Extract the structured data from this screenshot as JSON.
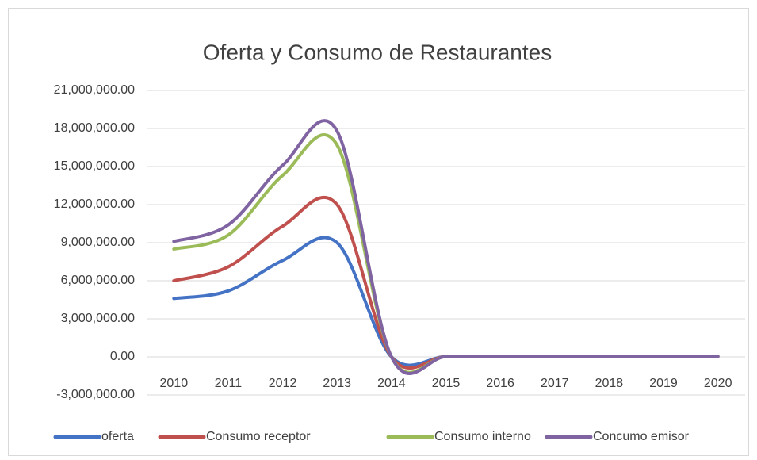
{
  "chart_data": {
    "type": "line",
    "title": "Oferta y Consumo de Restaurantes",
    "categories": [
      "2010",
      "2011",
      "2012",
      "2013",
      "2014",
      "2015",
      "2016",
      "2017",
      "2018",
      "2019",
      "2020"
    ],
    "series": [
      {
        "name": "oferta",
        "color": "#4472c4",
        "values": [
          4600000,
          5200000,
          7600000,
          9000000,
          0,
          20000,
          40000,
          60000,
          60000,
          60000,
          40000
        ]
      },
      {
        "name": "Consumo receptor",
        "color": "#c0504d",
        "values": [
          6000000,
          7100000,
          10300000,
          12000000,
          0,
          20000,
          40000,
          60000,
          60000,
          60000,
          40000
        ]
      },
      {
        "name": "Consumo interno",
        "color": "#9bbb59",
        "values": [
          8500000,
          9600000,
          14300000,
          16700000,
          0,
          20000,
          40000,
          60000,
          60000,
          60000,
          40000
        ]
      },
      {
        "name": "Concumo emisor",
        "color": "#8064a2",
        "values": [
          9100000,
          10400000,
          15100000,
          17800000,
          0,
          20000,
          40000,
          60000,
          60000,
          60000,
          40000
        ]
      }
    ],
    "ylim": [
      -3000000,
      21000000
    ],
    "yticks": [
      {
        "value": -3000000,
        "label": "-3,000,000.00"
      },
      {
        "value": 0,
        "label": "0.00"
      },
      {
        "value": 3000000,
        "label": "3,000,000.00"
      },
      {
        "value": 6000000,
        "label": "6,000,000.00"
      },
      {
        "value": 9000000,
        "label": "9,000,000.00"
      },
      {
        "value": 12000000,
        "label": "12,000,000.00"
      },
      {
        "value": 15000000,
        "label": "15,000,000.00"
      },
      {
        "value": 18000000,
        "label": "18,000,000.00"
      },
      {
        "value": 21000000,
        "label": "21,000,000.00"
      }
    ],
    "grid": true,
    "smooth": true,
    "legend": "bottom"
  }
}
